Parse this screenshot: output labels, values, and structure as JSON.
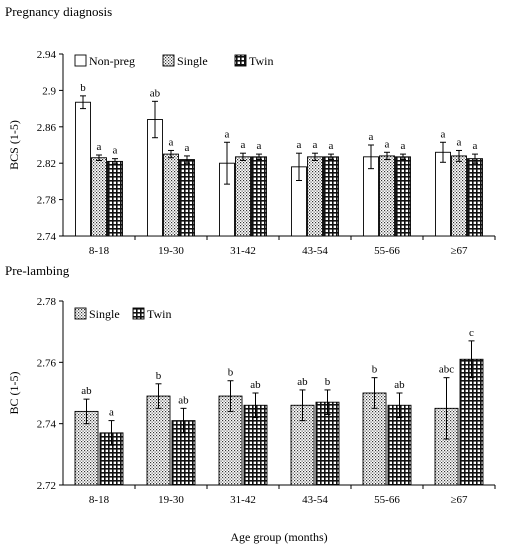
{
  "chart_data": [
    {
      "type": "bar",
      "title": "Pregnancy diagnosis",
      "ylabel": "BCS (1-5)",
      "xlabel": "",
      "ylim": [
        2.74,
        2.94
      ],
      "yticks": [
        "2.74",
        "2.78",
        "2.82",
        "2.86",
        "2.9",
        "2.94"
      ],
      "categories": [
        "8-18",
        "19-30",
        "31-42",
        "43-54",
        "55-66",
        "≥67"
      ],
      "legend_position": "top-left",
      "series": [
        {
          "name": "Non-preg",
          "pattern": "white",
          "values": [
            2.887,
            2.868,
            2.82,
            2.816,
            2.827,
            2.832
          ],
          "errors": [
            0.007,
            0.02,
            0.023,
            0.015,
            0.013,
            0.011
          ],
          "labels": [
            "b",
            "ab",
            "a",
            "a",
            "a",
            "a"
          ]
        },
        {
          "name": "Single",
          "pattern": "dotted",
          "values": [
            2.826,
            2.83,
            2.827,
            2.827,
            2.828,
            2.828
          ],
          "errors": [
            0.003,
            0.004,
            0.004,
            0.004,
            0.004,
            0.006
          ],
          "labels": [
            "a",
            "a",
            "a",
            "a",
            "a",
            "a"
          ]
        },
        {
          "name": "Twin",
          "pattern": "grid",
          "values": [
            2.822,
            2.824,
            2.827,
            2.827,
            2.827,
            2.825
          ],
          "errors": [
            0.003,
            0.004,
            0.003,
            0.003,
            0.003,
            0.005
          ],
          "labels": [
            "a",
            "a",
            "a",
            "a",
            "a",
            "a"
          ]
        }
      ]
    },
    {
      "type": "bar",
      "title": "Pre-lambing",
      "ylabel": "BC (1-5)",
      "xlabel": "Age group (months)",
      "ylim": [
        2.72,
        2.78
      ],
      "yticks": [
        "2.72",
        "2.74",
        "2.76",
        "2.78"
      ],
      "categories": [
        "8-18",
        "19-30",
        "31-42",
        "43-54",
        "55-66",
        "≥67"
      ],
      "legend_position": "top-left",
      "series": [
        {
          "name": "Single",
          "pattern": "dotted",
          "values": [
            2.744,
            2.749,
            2.749,
            2.746,
            2.75,
            2.745
          ],
          "errors": [
            0.004,
            0.004,
            0.005,
            0.005,
            0.005,
            0.01
          ],
          "labels": [
            "ab",
            "b",
            "b",
            "ab",
            "b",
            "abc"
          ]
        },
        {
          "name": "Twin",
          "pattern": "grid",
          "values": [
            2.737,
            2.741,
            2.746,
            2.747,
            2.746,
            2.761
          ],
          "errors": [
            0.004,
            0.004,
            0.004,
            0.004,
            0.004,
            0.006
          ],
          "labels": [
            "a",
            "ab",
            "ab",
            "b",
            "ab",
            "c"
          ]
        }
      ]
    }
  ]
}
